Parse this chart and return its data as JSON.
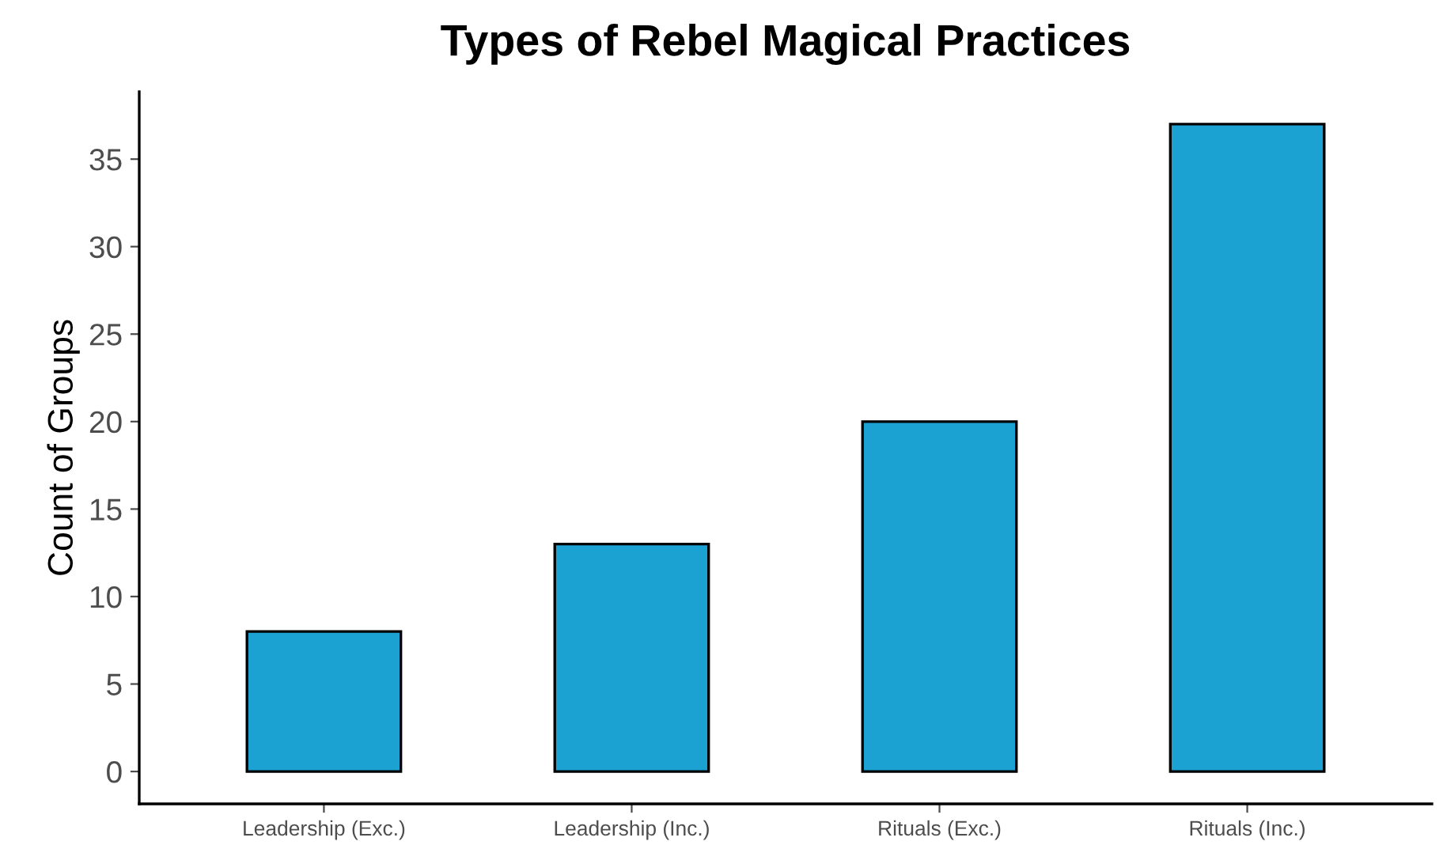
{
  "chart_data": {
    "type": "bar",
    "title": "Types of Rebel Magical Practices",
    "ylabel": "Count of Groups",
    "categories": [
      "Leadership (Exc.)",
      "Leadership (Inc.)",
      "Rituals (Exc.)",
      "Rituals (Inc.)"
    ],
    "values": [
      8,
      13,
      20,
      37
    ],
    "color": "#1ba1d2",
    "ylim": [
      -1.85,
      38.85
    ],
    "yticks": [
      0,
      5,
      10,
      15,
      20,
      25,
      30,
      35
    ],
    "grid": false,
    "legend": false
  }
}
